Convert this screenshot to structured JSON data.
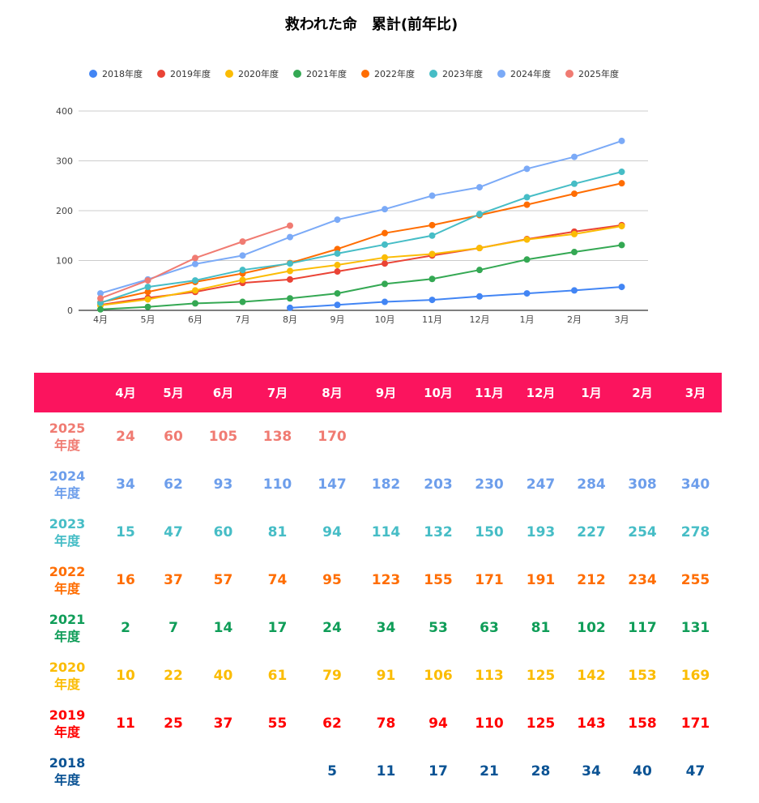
{
  "chart_data": {
    "type": "line",
    "title": "救われた命　累計(前年比)",
    "categories": [
      "4月",
      "5月",
      "6月",
      "7月",
      "8月",
      "9月",
      "10月",
      "11月",
      "12月",
      "1月",
      "2月",
      "3月"
    ],
    "ylim": [
      0,
      400
    ],
    "yticks": [
      0,
      100,
      200,
      300,
      400
    ],
    "ytick_labels": [
      "0",
      "100",
      "200",
      "300",
      "400"
    ],
    "legend_position": "top",
    "grid": true,
    "series": [
      {
        "name": "2018年度",
        "color": "#4285f4",
        "values": [
          null,
          null,
          null,
          null,
          5,
          11,
          17,
          21,
          28,
          34,
          40,
          47
        ]
      },
      {
        "name": "2019年度",
        "color": "#ea4335",
        "values": [
          11,
          25,
          37,
          55,
          62,
          78,
          94,
          110,
          125,
          143,
          158,
          171
        ]
      },
      {
        "name": "2020年度",
        "color": "#fbbc04",
        "values": [
          10,
          22,
          40,
          61,
          79,
          91,
          106,
          113,
          125,
          142,
          153,
          169
        ]
      },
      {
        "name": "2021年度",
        "color": "#34a853",
        "values": [
          2,
          7,
          14,
          17,
          24,
          34,
          53,
          63,
          81,
          102,
          117,
          131
        ]
      },
      {
        "name": "2022年度",
        "color": "#ff6d01",
        "values": [
          16,
          37,
          57,
          74,
          95,
          123,
          155,
          171,
          191,
          212,
          234,
          255
        ]
      },
      {
        "name": "2023年度",
        "color": "#46bdc6",
        "values": [
          15,
          47,
          60,
          81,
          94,
          114,
          132,
          150,
          193,
          227,
          254,
          278
        ]
      },
      {
        "name": "2024年度",
        "color": "#7baaf7",
        "values": [
          34,
          62,
          93,
          110,
          147,
          182,
          203,
          230,
          247,
          284,
          308,
          340
        ]
      },
      {
        "name": "2025年度",
        "color": "#f07b72",
        "values": [
          24,
          60,
          105,
          138,
          170,
          null,
          null,
          null,
          null,
          null,
          null,
          null
        ]
      }
    ]
  },
  "table": {
    "header_color": "#fb145e",
    "headers": [
      "",
      "4月",
      "5月",
      "6月",
      "7月",
      "8月",
      "9月",
      "10月",
      "11月",
      "12月",
      "1月",
      "2月",
      "3月"
    ],
    "rows": [
      {
        "year": "2025",
        "suffix": "年度",
        "color": "#f07b72",
        "cells": [
          "24",
          "60",
          "105",
          "138",
          "170",
          "",
          "",
          "",
          "",
          "",
          "",
          ""
        ]
      },
      {
        "year": "2024",
        "suffix": "年度",
        "color": "#6d9eeb",
        "cells": [
          "34",
          "62",
          "93",
          "110",
          "147",
          "182",
          "203",
          "230",
          "247",
          "284",
          "308",
          "340"
        ]
      },
      {
        "year": "2023",
        "suffix": "年度",
        "color": "#46bdc6",
        "cells": [
          "15",
          "47",
          "60",
          "81",
          "94",
          "114",
          "132",
          "150",
          "193",
          "227",
          "254",
          "278"
        ]
      },
      {
        "year": "2022",
        "suffix": "年度",
        "color": "#ff6d01",
        "cells": [
          "16",
          "37",
          "57",
          "74",
          "95",
          "123",
          "155",
          "171",
          "191",
          "212",
          "234",
          "255"
        ]
      },
      {
        "year": "2021",
        "suffix": "年度",
        "color": "#0f9d58",
        "cells": [
          "2",
          "7",
          "14",
          "17",
          "24",
          "34",
          "53",
          "63",
          "81",
          "102",
          "117",
          "131"
        ]
      },
      {
        "year": "2020",
        "suffix": "年度",
        "color": "#fbbc04",
        "cells": [
          "10",
          "22",
          "40",
          "61",
          "79",
          "91",
          "106",
          "113",
          "125",
          "142",
          "153",
          "169"
        ]
      },
      {
        "year": "2019",
        "suffix": "年度",
        "color": "#ff0000",
        "cells": [
          "11",
          "25",
          "37",
          "55",
          "62",
          "78",
          "94",
          "110",
          "125",
          "143",
          "158",
          "171"
        ]
      },
      {
        "year": "2018",
        "suffix": "年度",
        "color": "#0b5394",
        "cells": [
          "",
          "",
          "",
          "",
          "5",
          "11",
          "17",
          "21",
          "28",
          "34",
          "40",
          "47"
        ]
      }
    ]
  }
}
